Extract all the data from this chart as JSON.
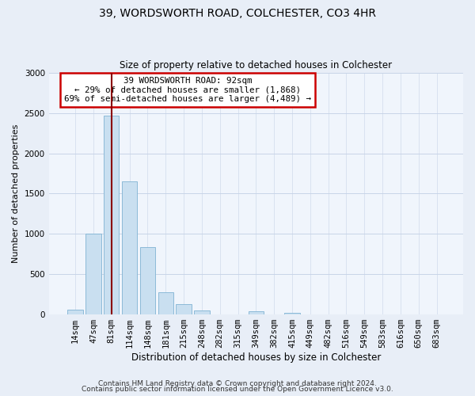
{
  "title": "39, WORDSWORTH ROAD, COLCHESTER, CO3 4HR",
  "subtitle": "Size of property relative to detached houses in Colchester",
  "xlabel": "Distribution of detached houses by size in Colchester",
  "ylabel": "Number of detached properties",
  "bin_labels": [
    "14sqm",
    "47sqm",
    "81sqm",
    "114sqm",
    "148sqm",
    "181sqm",
    "215sqm",
    "248sqm",
    "282sqm",
    "315sqm",
    "349sqm",
    "382sqm",
    "415sqm",
    "449sqm",
    "482sqm",
    "516sqm",
    "549sqm",
    "583sqm",
    "616sqm",
    "650sqm",
    "683sqm"
  ],
  "bar_values": [
    55,
    1000,
    2470,
    1650,
    830,
    270,
    120,
    50,
    0,
    0,
    35,
    0,
    20,
    0,
    0,
    0,
    0,
    0,
    0,
    0,
    0
  ],
  "bar_color": "#c9dff0",
  "bar_edge_color": "#7fb3d3",
  "vline_x_index": 2,
  "vline_color": "#8b0000",
  "annotation_line1": "39 WORDSWORTH ROAD: 92sqm",
  "annotation_line2": "← 29% of detached houses are smaller (1,868)",
  "annotation_line3": "69% of semi-detached houses are larger (4,489) →",
  "annotation_box_edge_color": "#cc0000",
  "annotation_box_fill": "#ffffff",
  "ylim": [
    0,
    3000
  ],
  "yticks": [
    0,
    500,
    1000,
    1500,
    2000,
    2500,
    3000
  ],
  "footer_line1": "Contains HM Land Registry data © Crown copyright and database right 2024.",
  "footer_line2": "Contains public sector information licensed under the Open Government Licence v3.0.",
  "bg_color": "#e8eef7",
  "plot_bg_color": "#f0f5fc",
  "grid_color": "#c8d4e8",
  "title_fontsize": 10,
  "subtitle_fontsize": 8.5,
  "ylabel_fontsize": 8,
  "xlabel_fontsize": 8.5,
  "tick_fontsize": 7.5,
  "footer_fontsize": 6.5
}
